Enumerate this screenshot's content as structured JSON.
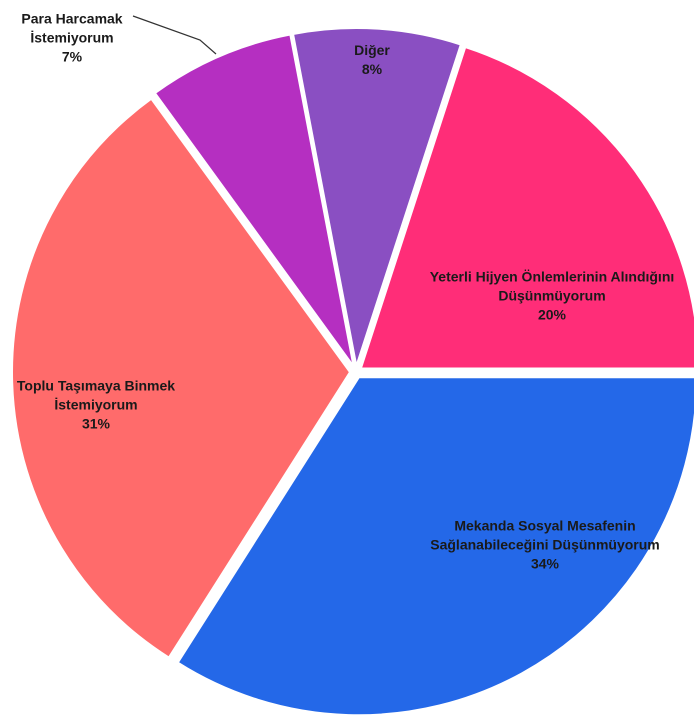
{
  "chart_data": {
    "type": "pie",
    "categories": [
      "Diğer",
      "Yeterli Hijyen Önlemlerinin Alındığını Düşünmüyorum",
      "Mekanda Sosyal Mesafenin Sağlanabileceğini Düşünmüyorum",
      "Toplu Taşımaya Binmek İstemiyorum",
      "Para Harcamak İstemiyorum"
    ],
    "values": [
      8,
      20,
      34,
      31,
      7
    ],
    "value_labels": [
      "8%",
      "20%",
      "34%",
      "31%",
      "7%"
    ],
    "colors": [
      "#8a4fc2",
      "#ff2d78",
      "#2468e8",
      "#ff6b6b",
      "#b52fc1"
    ]
  }
}
